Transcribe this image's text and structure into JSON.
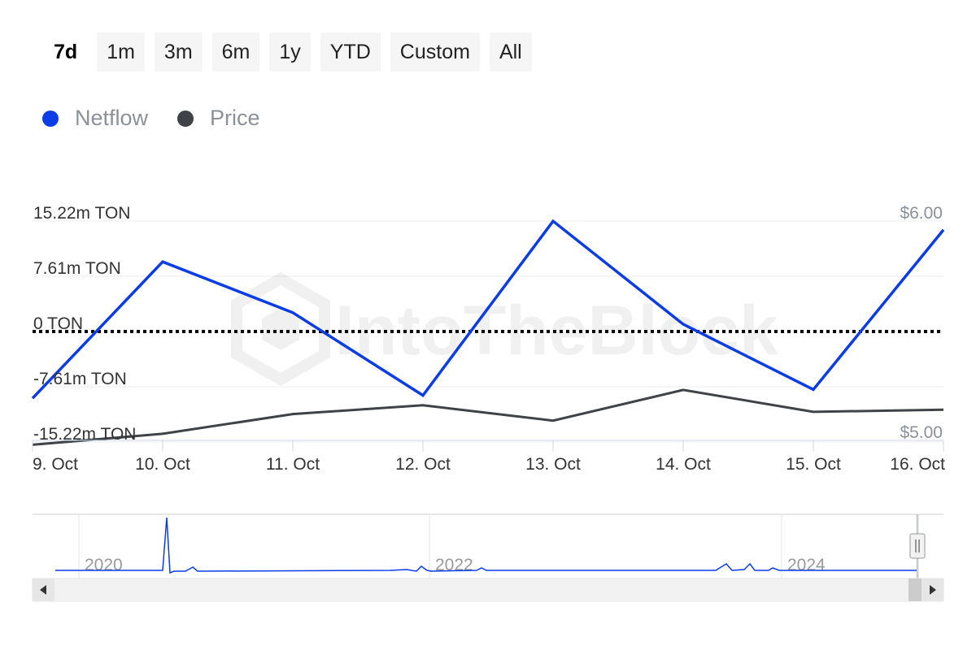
{
  "ranges": [
    "7d",
    "1m",
    "3m",
    "6m",
    "1y",
    "YTD",
    "Custom",
    "All"
  ],
  "active_range": "7d",
  "legend": [
    {
      "name": "Netflow",
      "color": "#0a3ce8"
    },
    {
      "name": "Price",
      "color": "#3f4246"
    }
  ],
  "watermark": "IntoTheBlock",
  "chart_data": {
    "type": "line",
    "x": [
      "9. Oct",
      "10. Oct",
      "11. Oct",
      "12. Oct",
      "13. Oct",
      "14. Oct",
      "15. Oct",
      "16. Oct"
    ],
    "series": [
      {
        "name": "Netflow",
        "axis": "left",
        "color": "#0a3ce8",
        "values": [
          -9.2,
          9.6,
          2.6,
          -8.8,
          15.2,
          1.0,
          -8.0,
          14.0
        ]
      },
      {
        "name": "Price",
        "axis": "right",
        "color": "#3f4246",
        "values": [
          4.98,
          5.03,
          5.12,
          5.16,
          5.09,
          5.23,
          5.13,
          5.14
        ]
      }
    ],
    "yaxis_left": {
      "ticks": [
        "15.22m TON",
        "7.61m TON",
        "0 TON",
        "-7.61m TON",
        "-15.22m TON"
      ],
      "tick_values": [
        15.22,
        7.61,
        0,
        -7.61,
        -15.22
      ],
      "range": [
        -15.22,
        15.22
      ]
    },
    "yaxis_right": {
      "ticks": [
        "$6.00",
        "$5.00"
      ],
      "tick_values": [
        6.0,
        5.0
      ],
      "range": [
        5.0,
        6.0
      ]
    },
    "zero_line": "dotted",
    "grid": true,
    "navigator": {
      "labels": [
        "2020",
        "2022",
        "2024"
      ]
    }
  }
}
